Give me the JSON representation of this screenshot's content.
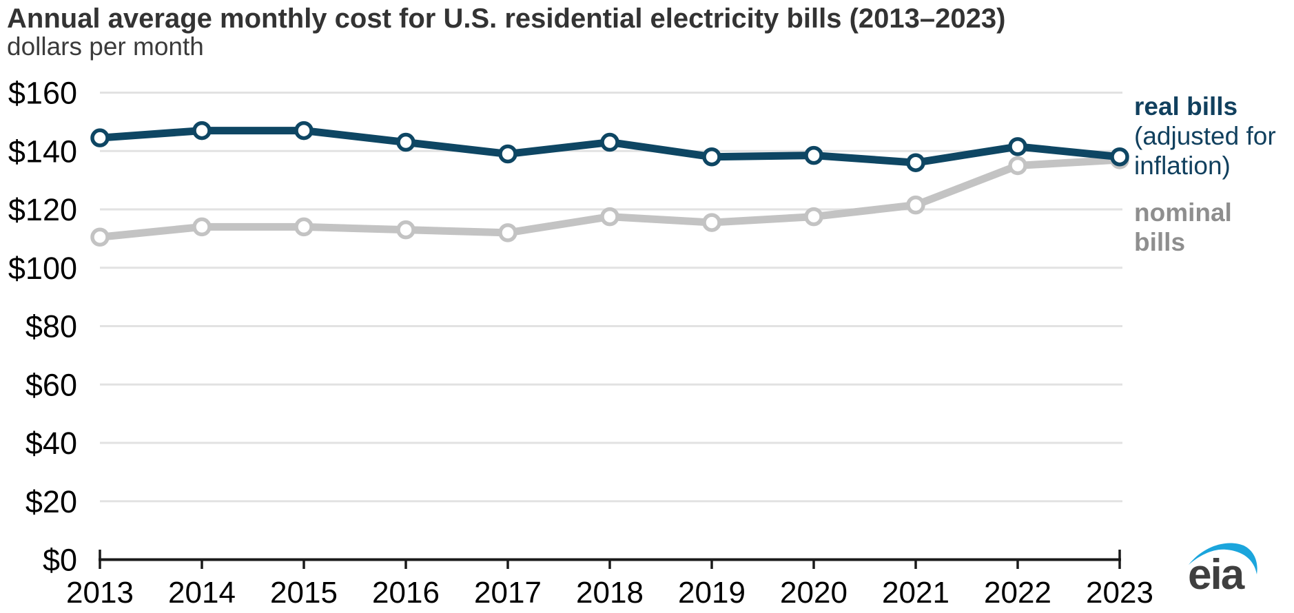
{
  "header": {
    "title": "Annual average monthly cost for U.S. residential electricity bills (2013–2023)",
    "subtitle": "dollars per month"
  },
  "legend": {
    "real_title": "real bills",
    "real_sub_line1": "(adjusted for",
    "real_sub_line2": "inflation)",
    "nominal_line1": "nominal",
    "nominal_line2": "bills"
  },
  "logo": {
    "text": "eia"
  },
  "colors": {
    "real": "#0e4663",
    "nominal": "#c3c3c3",
    "gridline": "#e2e2e2",
    "axis": "#1a1a1a",
    "tick_label": "#000000",
    "title_text": "#333333",
    "legend_real_text": "#11405e",
    "legend_nominal_text": "#8e8e8e",
    "logo_blue": "#1ba5dc",
    "logo_text": "#3f3f3f",
    "background": "#ffffff"
  },
  "chart_data": {
    "type": "line",
    "title": "Annual average monthly cost for U.S. residential electricity bills (2013–2023)",
    "ylabel": "dollars per month",
    "xlabel": "",
    "x": [
      "2013",
      "2014",
      "2015",
      "2016",
      "2017",
      "2018",
      "2019",
      "2020",
      "2021",
      "2022",
      "2023"
    ],
    "series": [
      {
        "name": "real bills (adjusted for inflation)",
        "values": [
          144.5,
          147,
          147,
          143,
          139,
          143,
          138,
          138.5,
          136,
          141.5,
          138
        ]
      },
      {
        "name": "nominal bills",
        "values": [
          110.5,
          114,
          114,
          113,
          112,
          117.5,
          115.5,
          117.5,
          121.5,
          135,
          137
        ]
      }
    ],
    "ylim": [
      0,
      160
    ],
    "ytick_values": [
      0,
      20,
      40,
      60,
      80,
      100,
      120,
      140,
      160
    ],
    "ytick_labels": [
      "$0",
      "$20",
      "$40",
      "$60",
      "$80",
      "$100",
      "$120",
      "$140",
      "$160"
    ],
    "grid": true,
    "legend_position": "right",
    "marker": "open-circle"
  }
}
